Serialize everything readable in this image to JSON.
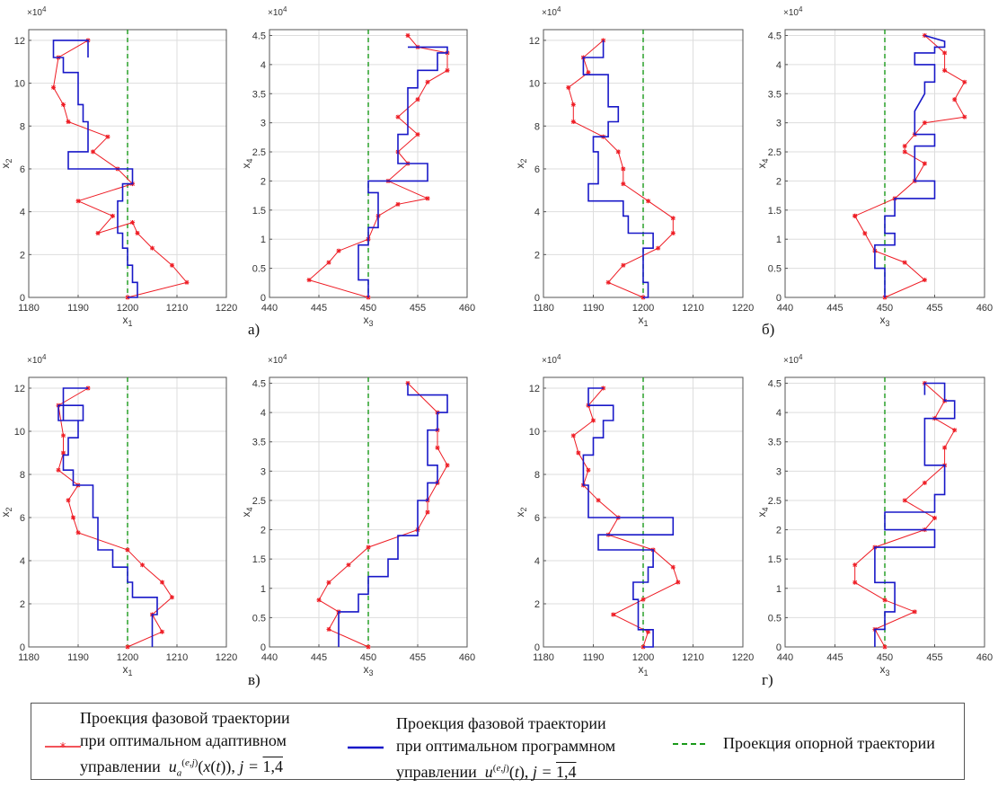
{
  "colors": {
    "adaptive": "#ee1c24",
    "program": "#1818c8",
    "reference": "#1a9a1a",
    "grid": "#dddddd",
    "axis": "#555555",
    "text": "#333333"
  },
  "panel_labels": [
    "а)",
    "б)",
    "в)",
    "г)"
  ],
  "legend": {
    "adaptive": {
      "line1": "Проекция фазовой траектории",
      "line2": "при оптимальном адаптивном",
      "line3_prefix": "управлении",
      "formula": "u_a^{(e,j)}(x(t)), j = 1,4",
      "j_eq": "j =",
      "j_val": "1,4"
    },
    "program": {
      "line1": "Проекция фазовой траектории",
      "line2": "при оптимальном программном",
      "line3_prefix": "управлении",
      "formula": "u^{(e,j)}(t), j = 1,4",
      "j_eq": "j =",
      "j_val": "1,4"
    },
    "reference": {
      "label": "Проекция опорной траектории"
    }
  },
  "chart_data": [
    {
      "panel": "а)",
      "type": "line",
      "xlabel": "x_1",
      "ylabel": "x_2",
      "ylim_multiplier_label": "×10^4",
      "xlim": [
        1180,
        1220
      ],
      "ylim": [
        0,
        12.5
      ],
      "xticks": [
        1180,
        1190,
        1200,
        1210,
        1220
      ],
      "yticks": [
        0,
        2,
        4,
        6,
        8,
        10,
        12
      ],
      "reference": 1200,
      "series": [
        {
          "name": "adaptive",
          "x": [
            1200,
            1212,
            1209,
            1205,
            1202,
            1201,
            1194,
            1197,
            1190,
            1201,
            1198,
            1193,
            1196,
            1188,
            1187,
            1185,
            1186,
            1192
          ],
          "y": [
            0,
            0.7,
            1.5,
            2.3,
            3.0,
            3.5,
            3.0,
            3.8,
            4.5,
            5.3,
            6.0,
            6.8,
            7.5,
            8.2,
            9.0,
            9.8,
            11.2,
            12.0
          ]
        },
        {
          "name": "program",
          "x": [
            1200,
            1202,
            1202,
            1201,
            1201,
            1200,
            1200,
            1199,
            1199,
            1198,
            1198,
            1199,
            1199,
            1201,
            1201,
            1188,
            1188,
            1192,
            1192,
            1191,
            1191,
            1190,
            1190,
            1190,
            1190,
            1187,
            1187,
            1185,
            1185,
            1192,
            1192
          ],
          "y": [
            0,
            0,
            0.7,
            0.7,
            1.5,
            1.5,
            2.3,
            2.3,
            3.0,
            3.0,
            4.5,
            4.5,
            5.3,
            5.3,
            6.0,
            6.0,
            6.8,
            6.8,
            8.2,
            8.2,
            9.0,
            9.0,
            9.8,
            9.8,
            10.5,
            10.5,
            11.2,
            11.2,
            12.0,
            12.0,
            11.2
          ]
        }
      ]
    },
    {
      "panel": "а)",
      "type": "line",
      "xlabel": "x_3",
      "ylabel": "x_4",
      "ylim_multiplier_label": "×10^4",
      "xlim": [
        440,
        460
      ],
      "ylim": [
        0,
        4.6
      ],
      "xticks": [
        440,
        445,
        450,
        455,
        460
      ],
      "yticks": [
        0,
        0.5,
        1,
        1.5,
        2,
        2.5,
        3,
        3.5,
        4,
        4.5
      ],
      "reference": 450,
      "series": [
        {
          "name": "adaptive",
          "x": [
            450,
            444,
            446,
            447,
            450,
            451,
            453,
            456,
            452,
            454,
            453,
            455,
            453,
            455,
            456,
            458,
            458,
            455,
            454
          ],
          "y": [
            0,
            0.3,
            0.6,
            0.8,
            1.0,
            1.4,
            1.6,
            1.7,
            2.0,
            2.3,
            2.5,
            2.8,
            3.1,
            3.4,
            3.7,
            3.9,
            4.2,
            4.3,
            4.5
          ]
        },
        {
          "name": "program",
          "x": [
            450,
            450,
            449,
            449,
            449,
            449,
            450,
            450,
            451,
            451,
            450,
            450,
            456,
            456,
            453,
            453,
            453,
            454,
            454,
            454,
            454,
            455,
            455,
            457,
            457,
            458,
            458,
            454
          ],
          "y": [
            0,
            0.3,
            0.3,
            0.6,
            0.6,
            0.9,
            0.9,
            1.2,
            1.2,
            1.8,
            1.8,
            2.0,
            2.0,
            2.3,
            2.3,
            2.6,
            2.8,
            2.8,
            3.1,
            3.4,
            3.6,
            3.6,
            3.9,
            3.9,
            4.2,
            4.2,
            4.3,
            4.3
          ]
        }
      ]
    },
    {
      "panel": "б)",
      "type": "line",
      "xlabel": "x_1",
      "ylabel": "x_2",
      "ylim_multiplier_label": "×10^4",
      "xlim": [
        1180,
        1220
      ],
      "ylim": [
        0,
        12.5
      ],
      "xticks": [
        1180,
        1190,
        1200,
        1210,
        1220
      ],
      "yticks": [
        0,
        2,
        4,
        6,
        8,
        10,
        12
      ],
      "reference": 1200,
      "series": [
        {
          "name": "adaptive",
          "x": [
            1200,
            1193,
            1196,
            1203,
            1206,
            1206,
            1201,
            1196,
            1196,
            1195,
            1192,
            1186,
            1186,
            1185,
            1189,
            1188,
            1192
          ],
          "y": [
            0,
            0.7,
            1.5,
            2.3,
            3.0,
            3.7,
            4.5,
            5.3,
            6.0,
            6.8,
            7.5,
            8.2,
            9.0,
            9.8,
            10.5,
            11.2,
            12.0
          ]
        },
        {
          "name": "program",
          "x": [
            1200,
            1201,
            1201,
            1200,
            1200,
            1202,
            1202,
            1197,
            1197,
            1196,
            1196,
            1189,
            1189,
            1191,
            1191,
            1190,
            1190,
            1193,
            1193,
            1195,
            1195,
            1193,
            1193,
            1193,
            1193,
            1188,
            1188,
            1192,
            1192
          ],
          "y": [
            0,
            0,
            0.7,
            0.7,
            2.3,
            2.3,
            3.0,
            3.0,
            3.8,
            3.8,
            4.5,
            4.5,
            5.3,
            5.3,
            6.8,
            6.8,
            7.5,
            7.5,
            8.2,
            8.2,
            8.9,
            8.9,
            9.5,
            9.5,
            10.4,
            10.4,
            11.2,
            11.2,
            12.0
          ]
        }
      ]
    },
    {
      "panel": "б)",
      "type": "line",
      "xlabel": "x_3",
      "ylabel": "x_4",
      "ylim_multiplier_label": "×10^4",
      "xlim": [
        440,
        460
      ],
      "ylim": [
        0,
        4.6
      ],
      "xticks": [
        440,
        445,
        450,
        455,
        460
      ],
      "yticks": [
        0,
        0.5,
        1,
        1.5,
        2,
        2.5,
        3,
        3.5,
        4,
        4.5
      ],
      "reference": 450,
      "series": [
        {
          "name": "adaptive",
          "x": [
            450,
            454,
            452,
            449,
            448,
            447,
            447,
            451,
            453,
            454,
            452,
            452,
            453,
            454,
            458,
            457,
            458,
            456,
            456,
            454
          ],
          "y": [
            0,
            0.3,
            0.6,
            0.8,
            1.1,
            1.4,
            1.4,
            1.7,
            2.0,
            2.3,
            2.5,
            2.6,
            2.8,
            3.0,
            3.1,
            3.4,
            3.7,
            3.9,
            4.2,
            4.5
          ]
        },
        {
          "name": "program",
          "x": [
            450,
            450,
            449,
            449,
            451,
            451,
            450,
            450,
            451,
            451,
            451,
            455,
            455,
            453,
            453,
            453,
            455,
            455,
            453,
            453,
            453,
            454,
            454,
            455,
            455,
            453,
            453,
            455,
            455,
            456,
            456,
            454
          ],
          "y": [
            0,
            0.5,
            0.5,
            0.9,
            0.9,
            1.1,
            1.1,
            1.4,
            1.4,
            1.6,
            1.7,
            1.7,
            2.0,
            2.0,
            2.3,
            2.6,
            2.6,
            2.8,
            2.8,
            3.2,
            3.2,
            3.5,
            3.7,
            3.7,
            4.0,
            4.0,
            4.2,
            4.2,
            4.3,
            4.3,
            4.4,
            4.5
          ]
        }
      ]
    },
    {
      "panel": "в)",
      "type": "line",
      "xlabel": "x_1",
      "ylabel": "x_2",
      "ylim_multiplier_label": "×10^4",
      "xlim": [
        1180,
        1220
      ],
      "ylim": [
        0,
        12.5
      ],
      "xticks": [
        1180,
        1190,
        1200,
        1210,
        1220
      ],
      "yticks": [
        0,
        2,
        4,
        6,
        8,
        10,
        12
      ],
      "reference": 1200,
      "series": [
        {
          "name": "adaptive",
          "x": [
            1200,
            1207,
            1205,
            1209,
            1207,
            1203,
            1200,
            1190,
            1189,
            1188,
            1190,
            1186,
            1187,
            1187,
            1186,
            1192
          ],
          "y": [
            0,
            0.7,
            1.5,
            2.3,
            3.0,
            3.8,
            4.5,
            5.3,
            6.0,
            6.8,
            7.5,
            8.2,
            9.0,
            9.8,
            11.2,
            12.0
          ]
        },
        {
          "name": "program",
          "x": [
            1205,
            1205,
            1206,
            1206,
            1201,
            1201,
            1200,
            1200,
            1197,
            1197,
            1194,
            1194,
            1193,
            1193,
            1189,
            1189,
            1187,
            1187,
            1188,
            1188,
            1190,
            1190,
            1186,
            1186,
            1191,
            1191,
            1187,
            1187,
            1192
          ],
          "y": [
            0,
            1.5,
            1.5,
            2.3,
            2.3,
            3.0,
            3.0,
            3.7,
            3.7,
            4.5,
            4.5,
            6.0,
            6.0,
            7.5,
            7.5,
            8.2,
            8.2,
            8.9,
            8.9,
            9.7,
            9.7,
            10.5,
            10.5,
            11.2,
            11.2,
            10.5,
            10.5,
            12.0,
            12.0
          ]
        }
      ]
    },
    {
      "panel": "в)",
      "type": "line",
      "xlabel": "x_3",
      "ylabel": "x_4",
      "ylim_multiplier_label": "×10^4",
      "xlim": [
        440,
        460
      ],
      "ylim": [
        0,
        4.6
      ],
      "xticks": [
        440,
        445,
        450,
        455,
        460
      ],
      "yticks": [
        0,
        0.5,
        1,
        1.5,
        2,
        2.5,
        3,
        3.5,
        4,
        4.5
      ],
      "reference": 450,
      "series": [
        {
          "name": "adaptive",
          "x": [
            450,
            446,
            447,
            445,
            446,
            448,
            450,
            455,
            456,
            456,
            457,
            458,
            457,
            457,
            457,
            454
          ],
          "y": [
            0,
            0.3,
            0.6,
            0.8,
            1.1,
            1.4,
            1.7,
            2.0,
            2.3,
            2.5,
            2.8,
            3.1,
            3.4,
            3.7,
            4.0,
            4.5
          ]
        },
        {
          "name": "program",
          "x": [
            447,
            447,
            449,
            449,
            450,
            450,
            452,
            452,
            453,
            453,
            455,
            455,
            455,
            456,
            456,
            457,
            457,
            456,
            456,
            457,
            457,
            458,
            458,
            454,
            454
          ],
          "y": [
            0,
            0.6,
            0.6,
            0.9,
            0.9,
            1.2,
            1.2,
            1.5,
            1.5,
            1.9,
            1.9,
            2.2,
            2.5,
            2.5,
            2.8,
            2.8,
            3.1,
            3.1,
            3.7,
            3.7,
            4.0,
            4.0,
            4.3,
            4.3,
            4.5
          ]
        }
      ]
    },
    {
      "panel": "г)",
      "type": "line",
      "xlabel": "x_1",
      "ylabel": "x_2",
      "ylim_multiplier_label": "×10^4",
      "xlim": [
        1180,
        1220
      ],
      "ylim": [
        0,
        12.5
      ],
      "xticks": [
        1180,
        1190,
        1200,
        1210,
        1220
      ],
      "yticks": [
        0,
        2,
        4,
        6,
        8,
        10,
        12
      ],
      "reference": 1200,
      "series": [
        {
          "name": "adaptive",
          "x": [
            1200,
            1201,
            1194,
            1200,
            1207,
            1206,
            1202,
            1193,
            1195,
            1191,
            1188,
            1189,
            1187,
            1186,
            1190,
            1189,
            1192
          ],
          "y": [
            0,
            0.7,
            1.5,
            2.2,
            3.0,
            3.7,
            4.5,
            5.2,
            6.0,
            6.8,
            7.5,
            8.2,
            9.0,
            9.8,
            10.5,
            11.2,
            12.0
          ]
        },
        {
          "name": "program",
          "x": [
            1200,
            1202,
            1202,
            1199,
            1199,
            1198,
            1198,
            1201,
            1201,
            1202,
            1202,
            1191,
            1191,
            1206,
            1206,
            1189,
            1189,
            1188,
            1188,
            1190,
            1190,
            1192,
            1192,
            1194,
            1194,
            1189,
            1189,
            1192
          ],
          "y": [
            0,
            0,
            0.8,
            0.8,
            2.2,
            2.2,
            3.0,
            3.0,
            3.7,
            3.7,
            4.5,
            4.5,
            5.2,
            5.2,
            6.0,
            6.0,
            7.5,
            7.5,
            8.9,
            8.9,
            9.7,
            9.7,
            10.5,
            10.5,
            11.2,
            11.2,
            12.0,
            12.0
          ]
        }
      ]
    },
    {
      "panel": "г)",
      "type": "line",
      "xlabel": "x_3",
      "ylabel": "x_4",
      "ylim_multiplier_label": "×10^4",
      "xlim": [
        440,
        460
      ],
      "ylim": [
        0,
        4.6
      ],
      "xticks": [
        440,
        445,
        450,
        455,
        460
      ],
      "yticks": [
        0,
        0.5,
        1,
        1.5,
        2,
        2.5,
        3,
        3.5,
        4,
        4.5
      ],
      "reference": 450,
      "series": [
        {
          "name": "adaptive",
          "x": [
            450,
            449,
            453,
            450,
            447,
            447,
            449,
            454,
            455,
            452,
            454,
            456,
            456,
            457,
            455,
            456,
            454
          ],
          "y": [
            0,
            0.3,
            0.6,
            0.8,
            1.1,
            1.4,
            1.7,
            2.0,
            2.2,
            2.5,
            2.8,
            3.1,
            3.4,
            3.7,
            3.9,
            4.2,
            4.5
          ]
        },
        {
          "name": "program",
          "x": [
            449,
            449,
            450,
            450,
            451,
            451,
            451,
            449,
            449,
            455,
            455,
            450,
            450,
            455,
            455,
            456,
            456,
            454,
            454,
            457,
            457,
            456,
            456,
            454,
            454
          ],
          "y": [
            0,
            0.3,
            0.3,
            0.6,
            0.6,
            0.9,
            1.1,
            1.1,
            1.7,
            1.7,
            2.0,
            2.0,
            2.3,
            2.3,
            2.6,
            2.6,
            3.1,
            3.1,
            3.9,
            3.9,
            4.2,
            4.2,
            4.5,
            4.5,
            4.3
          ]
        }
      ]
    }
  ]
}
